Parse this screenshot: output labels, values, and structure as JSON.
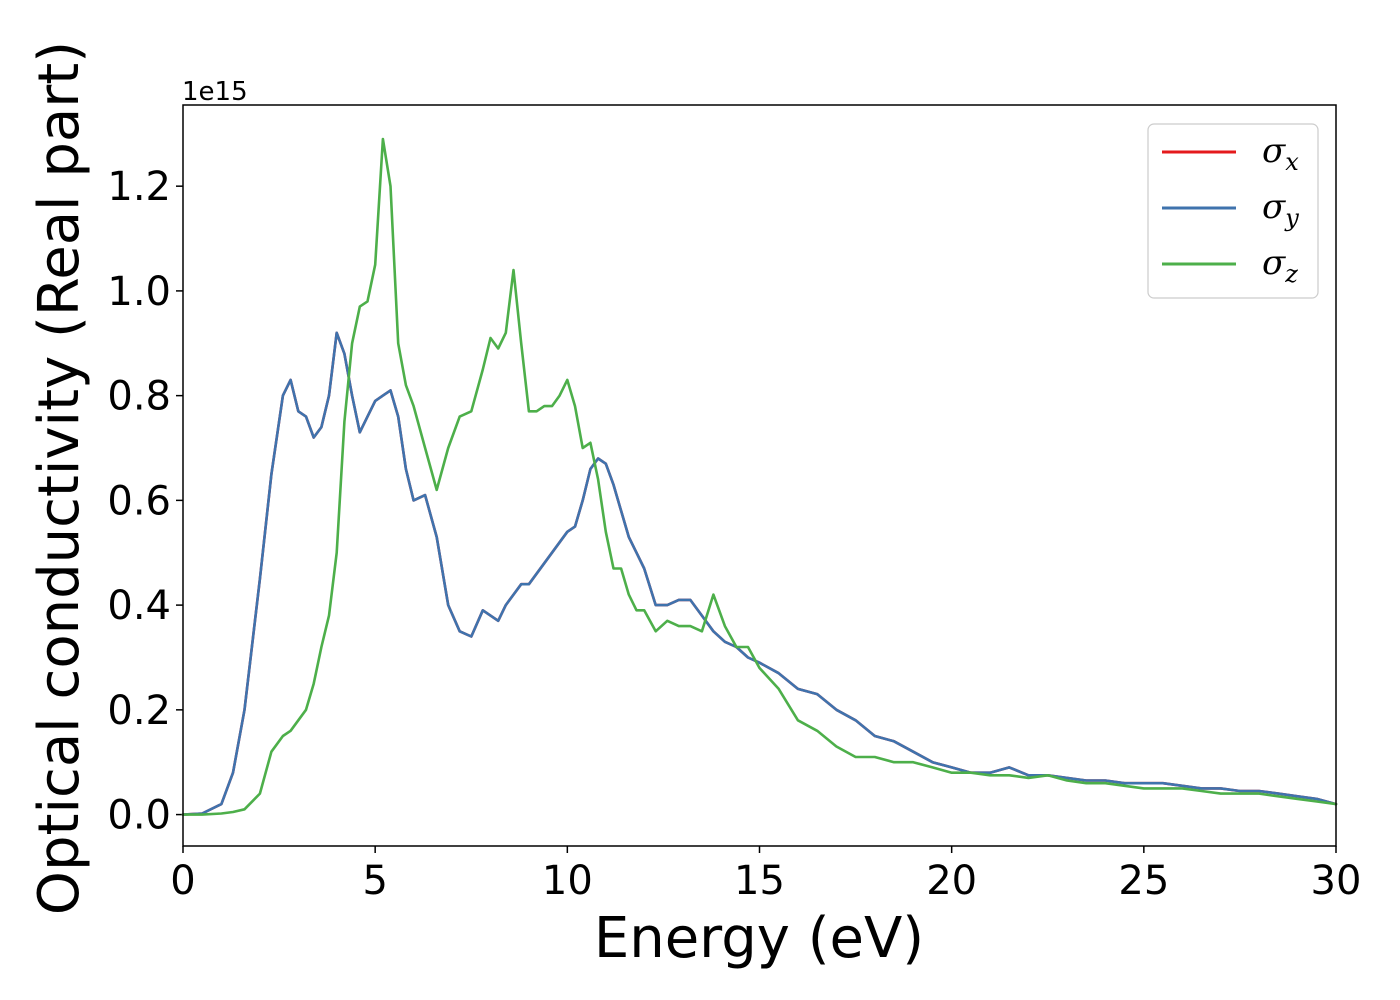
{
  "chart_data": {
    "type": "line",
    "xlabel": "Energy (eV)",
    "ylabel": "Optical conductivity (Real part)",
    "y_offset_text": "1e15",
    "xlim": [
      0,
      30
    ],
    "ylim": [
      -0.06,
      1.355
    ],
    "xticks": [
      0,
      5,
      10,
      15,
      20,
      25,
      30
    ],
    "yticks": [
      0.0,
      0.2,
      0.4,
      0.6,
      0.8,
      1.0,
      1.2
    ],
    "xtick_labels": [
      "0",
      "5",
      "10",
      "15",
      "20",
      "25",
      "30"
    ],
    "ytick_labels": [
      "0.0",
      "0.2",
      "0.4",
      "0.6",
      "0.8",
      "1.0",
      "1.2"
    ],
    "grid": false,
    "legend_position": "top-right",
    "x": [
      0,
      0.5,
      1,
      1.3,
      1.6,
      2,
      2.3,
      2.6,
      2.8,
      3.0,
      3.2,
      3.4,
      3.6,
      3.8,
      4.0,
      4.2,
      4.4,
      4.6,
      4.8,
      5.0,
      5.2,
      5.4,
      5.6,
      5.8,
      6.0,
      6.3,
      6.6,
      6.9,
      7.2,
      7.5,
      7.8,
      8.0,
      8.2,
      8.4,
      8.6,
      8.8,
      9.0,
      9.2,
      9.4,
      9.6,
      9.8,
      10.0,
      10.2,
      10.4,
      10.6,
      10.8,
      11.0,
      11.2,
      11.4,
      11.6,
      11.8,
      12.0,
      12.3,
      12.6,
      12.9,
      13.2,
      13.5,
      13.8,
      14.1,
      14.4,
      14.7,
      15.0,
      15.5,
      16.0,
      16.5,
      17.0,
      17.5,
      18.0,
      18.5,
      19.0,
      19.5,
      20.0,
      20.5,
      21.0,
      21.5,
      22.0,
      22.5,
      23.0,
      23.5,
      24.0,
      24.5,
      25.0,
      25.5,
      26.0,
      26.5,
      27.0,
      27.5,
      28.0,
      28.5,
      29.0,
      29.5,
      30.0
    ],
    "series": [
      {
        "name": "σx",
        "color": "#e41a1c",
        "values": [
          0.0,
          0.002,
          0.02,
          0.08,
          0.2,
          0.45,
          0.65,
          0.8,
          0.83,
          0.77,
          0.76,
          0.72,
          0.74,
          0.8,
          0.92,
          0.88,
          0.8,
          0.73,
          0.76,
          0.79,
          0.8,
          0.81,
          0.76,
          0.66,
          0.6,
          0.61,
          0.53,
          0.4,
          0.35,
          0.34,
          0.39,
          0.38,
          0.37,
          0.4,
          0.42,
          0.44,
          0.44,
          0.46,
          0.48,
          0.5,
          0.52,
          0.54,
          0.55,
          0.6,
          0.66,
          0.68,
          0.67,
          0.63,
          0.58,
          0.53,
          0.5,
          0.47,
          0.4,
          0.4,
          0.41,
          0.41,
          0.38,
          0.35,
          0.33,
          0.32,
          0.3,
          0.29,
          0.27,
          0.24,
          0.23,
          0.2,
          0.18,
          0.15,
          0.14,
          0.12,
          0.1,
          0.09,
          0.08,
          0.08,
          0.09,
          0.075,
          0.075,
          0.07,
          0.065,
          0.065,
          0.06,
          0.06,
          0.06,
          0.055,
          0.05,
          0.05,
          0.045,
          0.045,
          0.04,
          0.035,
          0.03,
          0.02
        ]
      },
      {
        "name": "σy",
        "color": "#3f73ad",
        "values": [
          0.0,
          0.002,
          0.02,
          0.08,
          0.2,
          0.45,
          0.65,
          0.8,
          0.83,
          0.77,
          0.76,
          0.72,
          0.74,
          0.8,
          0.92,
          0.88,
          0.8,
          0.73,
          0.76,
          0.79,
          0.8,
          0.81,
          0.76,
          0.66,
          0.6,
          0.61,
          0.53,
          0.4,
          0.35,
          0.34,
          0.39,
          0.38,
          0.37,
          0.4,
          0.42,
          0.44,
          0.44,
          0.46,
          0.48,
          0.5,
          0.52,
          0.54,
          0.55,
          0.6,
          0.66,
          0.68,
          0.67,
          0.63,
          0.58,
          0.53,
          0.5,
          0.47,
          0.4,
          0.4,
          0.41,
          0.41,
          0.38,
          0.35,
          0.33,
          0.32,
          0.3,
          0.29,
          0.27,
          0.24,
          0.23,
          0.2,
          0.18,
          0.15,
          0.14,
          0.12,
          0.1,
          0.09,
          0.08,
          0.08,
          0.09,
          0.075,
          0.075,
          0.07,
          0.065,
          0.065,
          0.06,
          0.06,
          0.06,
          0.055,
          0.05,
          0.05,
          0.045,
          0.045,
          0.04,
          0.035,
          0.03,
          0.02
        ]
      },
      {
        "name": "σz",
        "color": "#4daf4a",
        "values": [
          0.0,
          0.0,
          0.002,
          0.005,
          0.01,
          0.04,
          0.12,
          0.15,
          0.16,
          0.18,
          0.2,
          0.25,
          0.32,
          0.38,
          0.5,
          0.75,
          0.9,
          0.97,
          0.98,
          1.05,
          1.29,
          1.2,
          0.9,
          0.82,
          0.78,
          0.7,
          0.62,
          0.7,
          0.76,
          0.77,
          0.85,
          0.91,
          0.89,
          0.92,
          1.04,
          0.9,
          0.77,
          0.77,
          0.78,
          0.78,
          0.8,
          0.83,
          0.78,
          0.7,
          0.71,
          0.64,
          0.54,
          0.47,
          0.47,
          0.42,
          0.39,
          0.39,
          0.35,
          0.37,
          0.36,
          0.36,
          0.35,
          0.42,
          0.36,
          0.32,
          0.32,
          0.28,
          0.24,
          0.18,
          0.16,
          0.13,
          0.11,
          0.11,
          0.1,
          0.1,
          0.09,
          0.08,
          0.08,
          0.075,
          0.075,
          0.07,
          0.075,
          0.065,
          0.06,
          0.06,
          0.055,
          0.05,
          0.05,
          0.05,
          0.045,
          0.04,
          0.04,
          0.04,
          0.035,
          0.03,
          0.025,
          0.02
        ]
      }
    ]
  }
}
